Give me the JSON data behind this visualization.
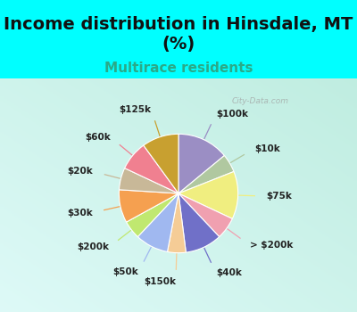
{
  "title": "Income distribution in Hinsdale, MT\n(%)",
  "subtitle": "Multirace residents",
  "labels": [
    "$100k",
    "$10k",
    "$75k",
    "> $200k",
    "$40k",
    "$150k",
    "$50k",
    "$200k",
    "$30k",
    "$20k",
    "$60k",
    "$125k"
  ],
  "values": [
    14,
    5,
    13,
    6,
    10,
    5,
    9,
    5,
    9,
    6,
    8,
    10
  ],
  "colors": [
    "#9b8ec4",
    "#b0c8a0",
    "#f0ee80",
    "#f0a0b0",
    "#7070c8",
    "#f5cc96",
    "#a0b8f0",
    "#c0e870",
    "#f5a050",
    "#c8b898",
    "#f08090",
    "#c8a030"
  ],
  "background_color": "#00ffff",
  "title_fontsize": 14,
  "subtitle_fontsize": 11,
  "label_fontsize": 7.5,
  "watermark": "City-Data.com"
}
